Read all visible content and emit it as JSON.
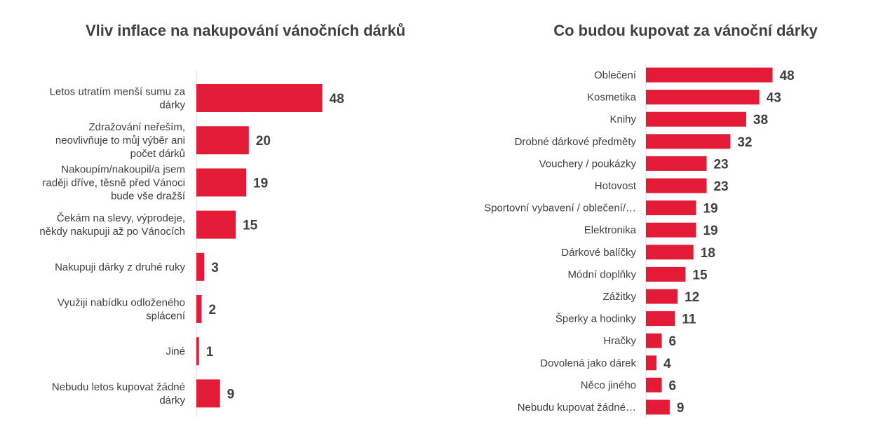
{
  "chart_data": [
    {
      "type": "bar",
      "orientation": "horizontal",
      "title": "Vliv inflace na nakupování vánočních dárků",
      "categories": [
        [
          "Letos utratím menší sumu za",
          "dárky"
        ],
        [
          "Zdražování neřeším,",
          "neovlivňuje to můj výběr ani",
          "počet dárků"
        ],
        [
          "Nakoupím/nakoupil/a jsem",
          "raději dříve, těsně před Vánoci",
          "bude vše dražší"
        ],
        [
          "Čekám na slevy, výprodeje,",
          "někdy nakupuji až po Vánocích"
        ],
        [
          "Nakupuji dárky z druhé ruky"
        ],
        [
          "Využiji nabídku odloženého",
          "splácení"
        ],
        [
          "Jiné"
        ],
        [
          "Nebudu letos kupovat žádné",
          "dárky"
        ]
      ],
      "values": [
        48,
        20,
        19,
        15,
        3,
        2,
        1,
        9
      ],
      "xlim": [
        0,
        50
      ],
      "color": "#e31b36",
      "grid": false,
      "legend": "none"
    },
    {
      "type": "bar",
      "orientation": "horizontal",
      "title": "Co budou kupovat za vánoční dárky",
      "categories": [
        "Oblečení",
        "Kosmetika",
        "Knihy",
        "Drobné dárkové předměty",
        "Vouchery / poukázky",
        "Hotovost",
        "Sportovní vybavení / oblečení/…",
        "Elektronika",
        "Dárkové balíčky",
        "Módní doplňky",
        "Zážitky",
        "Šperky a hodinky",
        "Hračky",
        "Dovolená jako dárek",
        "Něco jiného",
        "Nebudu kupovat žádné…"
      ],
      "values": [
        48,
        43,
        38,
        32,
        23,
        23,
        19,
        19,
        18,
        15,
        12,
        11,
        6,
        4,
        6,
        9
      ],
      "xlim": [
        0,
        50
      ],
      "color": "#e31b36",
      "grid": false,
      "legend": "none"
    }
  ]
}
